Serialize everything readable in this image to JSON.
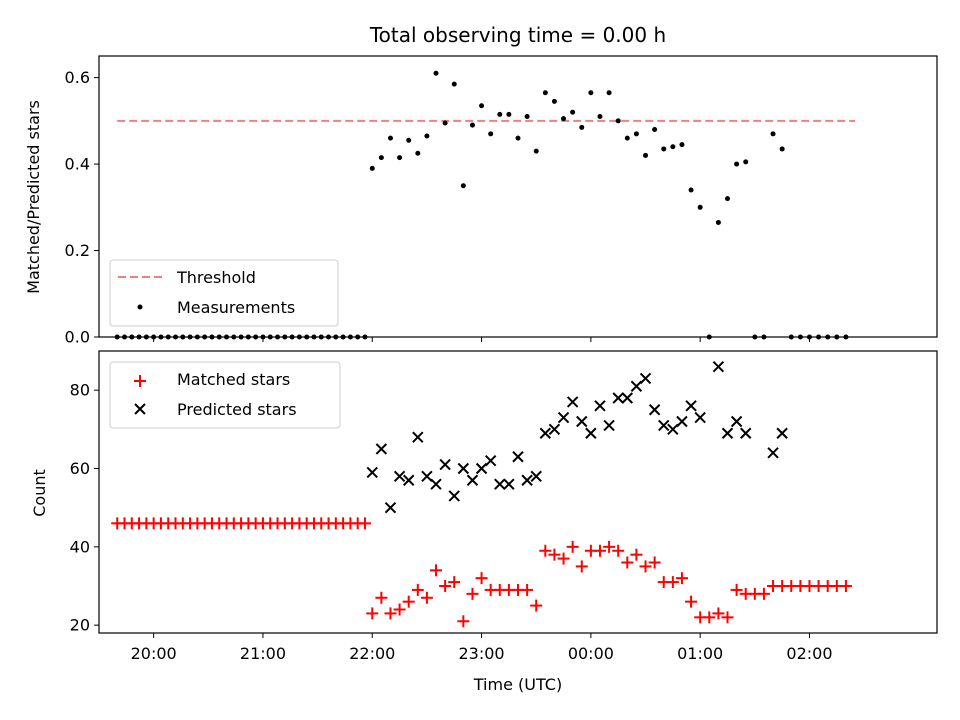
{
  "chart_data": [
    {
      "type": "scatter",
      "title": "Total observing time = 0.00 h",
      "ylabel": "Matched/Predicted stars",
      "xlim": [
        "19:30",
        "03:10"
      ],
      "ylim": [
        0,
        0.65
      ],
      "yticks": [
        "0.0",
        "0.2",
        "0.4",
        "0.6"
      ],
      "ytick_values": [
        0,
        0.2,
        0.4,
        0.6
      ],
      "legend_position": "lower-left",
      "series": [
        {
          "name": "Threshold",
          "kind": "dashed-line",
          "color": "#f08080",
          "x": [
            "19:40",
            "02:25"
          ],
          "y": [
            0.5,
            0.5
          ]
        },
        {
          "name": "Measurements",
          "kind": "points",
          "color": "#000000",
          "x": [
            "19:40",
            "19:44",
            "19:48",
            "19:52",
            "19:56",
            "20:00",
            "20:04",
            "20:08",
            "20:12",
            "20:16",
            "20:20",
            "20:24",
            "20:28",
            "20:32",
            "20:36",
            "20:40",
            "20:44",
            "20:48",
            "20:52",
            "20:56",
            "21:00",
            "21:04",
            "21:08",
            "21:12",
            "21:16",
            "21:20",
            "21:24",
            "21:28",
            "21:32",
            "21:36",
            "21:40",
            "21:44",
            "21:48",
            "21:52",
            "21:56",
            "22:00",
            "22:05",
            "22:10",
            "22:15",
            "22:20",
            "22:25",
            "22:30",
            "22:35",
            "22:40",
            "22:45",
            "22:50",
            "22:55",
            "23:00",
            "23:05",
            "23:10",
            "23:15",
            "23:20",
            "23:25",
            "23:30",
            "23:35",
            "23:40",
            "23:45",
            "23:50",
            "23:55",
            "00:00",
            "00:05",
            "00:10",
            "00:15",
            "00:20",
            "00:25",
            "00:30",
            "00:35",
            "00:40",
            "00:45",
            "00:50",
            "00:55",
            "01:00",
            "01:05",
            "01:10",
            "01:15",
            "01:20",
            "01:25",
            "01:30",
            "01:35",
            "01:40",
            "01:45",
            "01:50",
            "01:55",
            "02:00",
            "02:05",
            "02:10",
            "02:15",
            "02:20"
          ],
          "y": [
            0,
            0,
            0,
            0,
            0,
            0,
            0,
            0,
            0,
            0,
            0,
            0,
            0,
            0,
            0,
            0,
            0,
            0,
            0,
            0,
            0,
            0,
            0,
            0,
            0,
            0,
            0,
            0,
            0,
            0,
            0,
            0,
            0,
            0,
            0,
            0.39,
            0.415,
            0.46,
            0.415,
            0.455,
            0.425,
            0.465,
            0.61,
            0.495,
            0.585,
            0.35,
            0.49,
            0.535,
            0.47,
            0.515,
            0.515,
            0.46,
            0.51,
            0.43,
            0.565,
            0.545,
            0.505,
            0.52,
            0.485,
            0.565,
            0.51,
            0.565,
            0.5,
            0.46,
            0.47,
            0.42,
            0.48,
            0.435,
            0.44,
            0.445,
            0.34,
            0.3,
            0,
            0.265,
            0.32,
            0.4,
            0.405,
            0,
            0,
            0.47,
            0.435,
            0,
            0,
            0,
            0,
            0,
            0,
            0
          ]
        }
      ]
    },
    {
      "type": "scatter",
      "xlabel": "Time (UTC)",
      "ylabel": "Count",
      "xlim": [
        "19:30",
        "03:10"
      ],
      "ylim": [
        18,
        90
      ],
      "xticks": [
        "20:00",
        "21:00",
        "22:00",
        "23:00",
        "00:00",
        "01:00",
        "02:00"
      ],
      "yticks": [
        "20",
        "40",
        "60",
        "80"
      ],
      "ytick_values": [
        20,
        40,
        60,
        80
      ],
      "legend_position": "upper-left",
      "series": [
        {
          "name": "Matched stars",
          "marker": "plus",
          "color": "#ff0000",
          "x": [
            "19:40",
            "19:44",
            "19:48",
            "19:52",
            "19:56",
            "20:00",
            "20:04",
            "20:08",
            "20:12",
            "20:16",
            "20:20",
            "20:24",
            "20:28",
            "20:32",
            "20:36",
            "20:40",
            "20:44",
            "20:48",
            "20:52",
            "20:56",
            "21:00",
            "21:04",
            "21:08",
            "21:12",
            "21:16",
            "21:20",
            "21:24",
            "21:28",
            "21:32",
            "21:36",
            "21:40",
            "21:44",
            "21:48",
            "21:52",
            "21:56",
            "22:00",
            "22:05",
            "22:10",
            "22:15",
            "22:20",
            "22:25",
            "22:30",
            "22:35",
            "22:40",
            "22:45",
            "22:50",
            "22:55",
            "23:00",
            "23:05",
            "23:10",
            "23:15",
            "23:20",
            "23:25",
            "23:30",
            "23:35",
            "23:40",
            "23:45",
            "23:50",
            "23:55",
            "00:00",
            "00:05",
            "00:10",
            "00:15",
            "00:20",
            "00:25",
            "00:30",
            "00:35",
            "00:40",
            "00:45",
            "00:50",
            "00:55",
            "01:00",
            "01:05",
            "01:10",
            "01:15",
            "01:20",
            "01:25",
            "01:30",
            "01:35",
            "01:40",
            "01:45",
            "01:50",
            "01:55",
            "02:00",
            "02:05",
            "02:10",
            "02:15",
            "02:20"
          ],
          "y": [
            46,
            46,
            46,
            46,
            46,
            46,
            46,
            46,
            46,
            46,
            46,
            46,
            46,
            46,
            46,
            46,
            46,
            46,
            46,
            46,
            46,
            46,
            46,
            46,
            46,
            46,
            46,
            46,
            46,
            46,
            46,
            46,
            46,
            46,
            46,
            23,
            27,
            23,
            24,
            26,
            29,
            27,
            34,
            30,
            31,
            21,
            28,
            32,
            29,
            29,
            29,
            29,
            29,
            25,
            39,
            38,
            37,
            40,
            35,
            39,
            39,
            40,
            39,
            36,
            38,
            35,
            36,
            31,
            31,
            32,
            26,
            22,
            22,
            23,
            22,
            29,
            28,
            28,
            28,
            30,
            30,
            30,
            30,
            30,
            30,
            30,
            30,
            30
          ]
        },
        {
          "name": "Predicted stars",
          "marker": "x",
          "color": "#000000",
          "x": [
            "22:00",
            "22:05",
            "22:10",
            "22:15",
            "22:20",
            "22:25",
            "22:30",
            "22:35",
            "22:40",
            "22:45",
            "22:50",
            "22:55",
            "23:00",
            "23:05",
            "23:10",
            "23:15",
            "23:20",
            "23:25",
            "23:30",
            "23:35",
            "23:40",
            "23:45",
            "23:50",
            "23:55",
            "00:00",
            "00:05",
            "00:10",
            "00:15",
            "00:20",
            "00:25",
            "00:30",
            "00:35",
            "00:40",
            "00:45",
            "00:50",
            "00:55",
            "01:00",
            "01:10",
            "01:15",
            "01:20",
            "01:25",
            "01:40",
            "01:45"
          ],
          "y": [
            59,
            65,
            50,
            58,
            57,
            68,
            58,
            56,
            61,
            53,
            60,
            57,
            60,
            62,
            56,
            56,
            63,
            57,
            58,
            69,
            70,
            73,
            77,
            72,
            69,
            76,
            71,
            78,
            78,
            81,
            83,
            75,
            71,
            70,
            72,
            76,
            73,
            86,
            69,
            72,
            69,
            64,
            69
          ]
        }
      ]
    }
  ]
}
